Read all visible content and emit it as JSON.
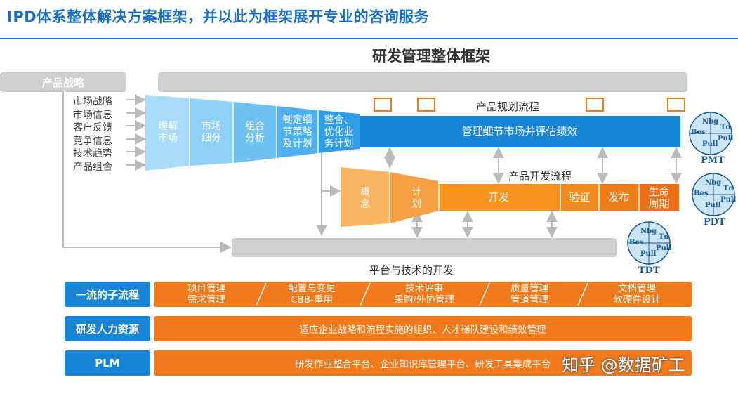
{
  "title": "IPD体系整体解决方案框架，并以此为框架展开专业的咨询服务",
  "subtitle": "研发管理整体框架",
  "product_strategy": "产品战略",
  "inputs": [
    "市场战略",
    "市场信息",
    "客户反馈",
    "竞争信息",
    "技术趋势",
    "产品组合"
  ],
  "planning": {
    "flow_label": "产品规划流程",
    "stages": [
      "理解\n市场",
      "市场\n细分",
      "组合\n分析",
      "制定细\n节策略\n及计划",
      "整合、\n优化业\n务计划"
    ],
    "main_bar": "管理细节市场并评估绩效"
  },
  "development": {
    "flow_label": "产品开发流程",
    "stages": [
      "概\n念",
      "计\n划",
      "开发",
      "验证",
      "发布",
      "生命\n周期"
    ]
  },
  "platform_label": "平台与技术的开发",
  "gears": {
    "words": [
      "Nbg",
      "Td",
      "Bes",
      "Pull",
      "Pull"
    ],
    "pmt": "PMT",
    "pdt": "PDT",
    "tdt": "TDT"
  },
  "rows": [
    {
      "label": "一流的子流程",
      "cells": [
        "项目管理\n需求管理",
        "配置与变更\nCBB-重用",
        "技术评审\n采购/外协管理",
        "质量管理\n管道管理",
        "文档管理\n软硬件设计"
      ]
    },
    {
      "label": "研发人力资源",
      "text": "适应企业战略和流程实施的组织、人才梯队建设和绩效管理"
    },
    {
      "label": "PLM",
      "text": "研发作业整合平台、企业知识库管理平台、研发工具集成平台"
    }
  ],
  "watermark": "知乎 @数据矿工",
  "colors": {
    "blue": "#1784d6",
    "light_blue": "#7ec8f5",
    "orange": "#f07a1c",
    "light_orange": "#f9b55f",
    "gray": "#cfcfcf"
  }
}
